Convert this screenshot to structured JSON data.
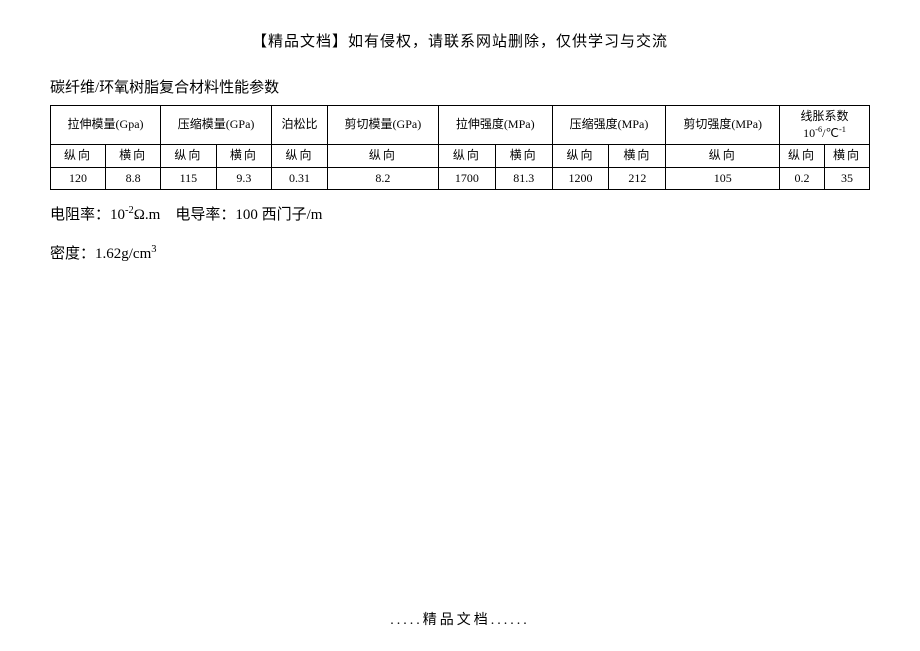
{
  "header_note": "【精品文档】如有侵权，请联系网站删除，仅供学习与交流",
  "title": "碳纤维/环氧树脂复合材料性能参数",
  "table": {
    "groups": [
      {
        "label": "拉伸模量(Gpa)",
        "span": 2,
        "subs": [
          "纵向",
          "横向"
        ],
        "values": [
          "120",
          "8.8"
        ]
      },
      {
        "label": "压缩模量(GPa)",
        "span": 2,
        "subs": [
          "纵向",
          "横向"
        ],
        "values": [
          "115",
          "9.3"
        ]
      },
      {
        "label": "泊松比",
        "span": 1,
        "subs": [
          "纵向"
        ],
        "values": [
          "0.31"
        ]
      },
      {
        "label": "剪切模量(GPa)",
        "span": 1,
        "subs": [
          "纵向"
        ],
        "values": [
          "8.2"
        ]
      },
      {
        "label": "拉伸强度(MPa)",
        "span": 2,
        "subs": [
          "纵向",
          "横向"
        ],
        "values": [
          "1700",
          "81.3"
        ]
      },
      {
        "label": "压缩强度(MPa)",
        "span": 2,
        "subs": [
          "纵向",
          "横向"
        ],
        "values": [
          "1200",
          "212"
        ]
      },
      {
        "label": "剪切强度(MPa)",
        "span": 1,
        "subs": [
          "纵向"
        ],
        "values": [
          "105"
        ]
      },
      {
        "label_html": "线胀系数<br>10<span class=\"sup\">-6</span>/℃<span class=\"sup\">-1</span>",
        "span": 2,
        "subs": [
          "纵向",
          "横向"
        ],
        "values": [
          "0.2",
          "35"
        ]
      }
    ]
  },
  "line1_prefix": "电阻率：10",
  "line1_exp": "-2",
  "line1_mid": "Ω.m　电导率：100 西门子/m",
  "line2_prefix": "密度：1.62g/cm",
  "line2_exp": "3",
  "footer": ".....精品文档......",
  "colors": {
    "bg": "#ffffff",
    "text": "#000000",
    "border": "#000000"
  }
}
